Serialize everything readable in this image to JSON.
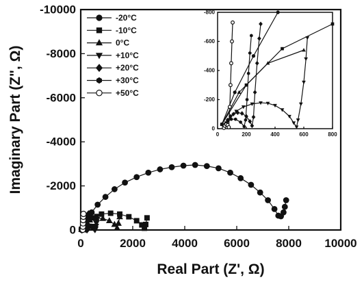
{
  "chart_data": [
    {
      "type": "scatter",
      "xlabel": "Real Part  (Z', Ω)",
      "ylabel": "Imaginary Part  (Z\", Ω)",
      "xlim": [
        0,
        10000
      ],
      "ylim": [
        0,
        -10000
      ],
      "x_ticks": [
        0,
        2000,
        4000,
        6000,
        8000,
        10000
      ],
      "y_ticks": [
        0,
        -2000,
        -4000,
        -6000,
        -8000,
        -10000
      ],
      "legend_position": "top-left",
      "series": [
        {
          "name": "-20°C",
          "marker": "circle",
          "x": [
            30,
            120,
            250,
            420,
            650,
            950,
            1300,
            1700,
            2150,
            2600,
            3050,
            3500,
            3950,
            4400,
            4850,
            5300,
            5750,
            6150,
            6550,
            6900,
            7200,
            7450,
            7600,
            7700,
            7800,
            7850,
            7900
          ],
          "y": [
            -30,
            -250,
            -500,
            -800,
            -1150,
            -1500,
            -1850,
            -2150,
            -2400,
            -2600,
            -2750,
            -2850,
            -2920,
            -2950,
            -2900,
            -2800,
            -2600,
            -2350,
            -2050,
            -1700,
            -1350,
            -950,
            -650,
            -620,
            -800,
            -1050,
            -1350
          ]
        },
        {
          "name": "-10°C",
          "marker": "square",
          "x": [
            30,
            200,
            450,
            800,
            1150,
            1500,
            1850,
            2150,
            2350,
            2450,
            2500,
            2550
          ],
          "y": [
            -30,
            -300,
            -550,
            -720,
            -760,
            -720,
            -600,
            -420,
            -230,
            -80,
            -250,
            -550
          ]
        },
        {
          "name": "0°C",
          "marker": "triangle-up",
          "x": [
            30,
            150,
            350,
            600,
            850,
            1100,
            1300,
            1400,
            1450,
            1500
          ],
          "y": [
            -30,
            -250,
            -450,
            -540,
            -520,
            -420,
            -250,
            -90,
            -300,
            -600
          ]
        },
        {
          "name": "+10°C",
          "marker": "triangle-down",
          "x": [
            44,
            60,
            90,
            130,
            180,
            240,
            300,
            350,
            400,
            450,
            500,
            530,
            550,
            560,
            580,
            600,
            615,
            625
          ],
          "y": [
            -10,
            -40,
            -80,
            -120,
            -150,
            -170,
            -178,
            -175,
            -160,
            -130,
            -85,
            -40,
            -12,
            -60,
            -170,
            -320,
            -480,
            -625
          ]
        },
        {
          "name": "+20°C",
          "marker": "diamond",
          "x": [
            44,
            55,
            70,
            90,
            110,
            140,
            170,
            200,
            225,
            240,
            250,
            260,
            275,
            290,
            300
          ],
          "y": [
            -10,
            -35,
            -60,
            -85,
            -100,
            -110,
            -105,
            -85,
            -50,
            -20,
            -80,
            -250,
            -450,
            -620,
            -720
          ]
        },
        {
          "name": "+30°C",
          "marker": "hexagon",
          "x": [
            44,
            55,
            70,
            95,
            125,
            160,
            185,
            195,
            205,
            215,
            225,
            235
          ],
          "y": [
            -10,
            -30,
            -50,
            -65,
            -65,
            -45,
            -15,
            -60,
            -200,
            -380,
            -520,
            -640
          ]
        },
        {
          "name": "+50°C",
          "marker": "circle-open",
          "x": [
            44,
            50,
            60,
            70,
            78,
            85,
            90,
            95,
            100,
            105
          ],
          "y": [
            -5,
            -20,
            -30,
            -25,
            -10,
            -150,
            -300,
            -450,
            -600,
            -730
          ]
        }
      ]
    },
    {
      "type": "scatter",
      "role": "inset",
      "xlim": [
        0,
        800
      ],
      "ylim": [
        0,
        -800
      ],
      "x_ticks": [
        0,
        200,
        400,
        600,
        800
      ],
      "y_ticks": [
        0,
        -200,
        -400,
        -600,
        -800
      ],
      "series_ref": "main"
    }
  ]
}
